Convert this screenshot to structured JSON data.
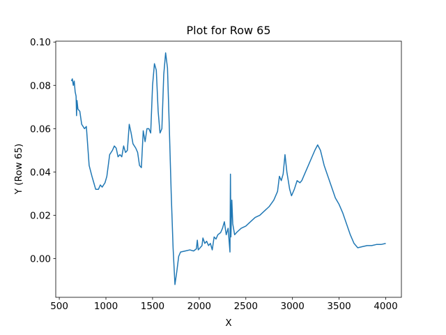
{
  "chart_data": {
    "type": "line",
    "title": "Plot for Row 65",
    "x_label": "X",
    "y_label": "Y (Row 65)",
    "x": [
      630,
      640,
      650,
      660,
      670,
      680,
      685,
      690,
      700,
      720,
      740,
      770,
      790,
      800,
      820,
      850,
      870,
      890,
      920,
      940,
      960,
      990,
      1010,
      1040,
      1070,
      1090,
      1110,
      1130,
      1150,
      1170,
      1190,
      1210,
      1230,
      1250,
      1270,
      1290,
      1320,
      1340,
      1360,
      1380,
      1400,
      1420,
      1440,
      1460,
      1480,
      1500,
      1520,
      1540,
      1560,
      1580,
      1600,
      1620,
      1640,
      1660,
      1680,
      1700,
      1720,
      1740,
      1760,
      1780,
      1800,
      1850,
      1900,
      1940,
      1970,
      1980,
      1990,
      2030,
      2040,
      2060,
      2080,
      2100,
      2120,
      2140,
      2160,
      2180,
      2200,
      2230,
      2250,
      2270,
      2290,
      2310,
      2330,
      2335,
      2340,
      2350,
      2360,
      2380,
      2400,
      2450,
      2500,
      2550,
      2600,
      2650,
      2700,
      2750,
      2800,
      2840,
      2860,
      2880,
      2900,
      2920,
      2940,
      2970,
      2990,
      3020,
      3050,
      3080,
      3100,
      3130,
      3160,
      3200,
      3240,
      3270,
      3300,
      3340,
      3380,
      3420,
      3460,
      3500,
      3540,
      3580,
      3620,
      3660,
      3700,
      3750,
      3800,
      3850,
      3900,
      3950,
      4000
    ],
    "series": [
      {
        "name": "Row 65",
        "color": "#1f77b4",
        "values": [
          0.082,
          0.083,
          0.08,
          0.082,
          0.077,
          0.075,
          0.066,
          0.073,
          0.069,
          0.068,
          0.062,
          0.06,
          0.061,
          0.055,
          0.043,
          0.038,
          0.035,
          0.032,
          0.032,
          0.034,
          0.033,
          0.035,
          0.038,
          0.048,
          0.05,
          0.052,
          0.051,
          0.047,
          0.048,
          0.047,
          0.052,
          0.049,
          0.05,
          0.062,
          0.058,
          0.053,
          0.051,
          0.049,
          0.043,
          0.042,
          0.059,
          0.054,
          0.06,
          0.06,
          0.058,
          0.08,
          0.09,
          0.087,
          0.068,
          0.058,
          0.06,
          0.085,
          0.095,
          0.088,
          0.06,
          0.03,
          0.005,
          -0.012,
          -0.006,
          0.001,
          0.003,
          0.0035,
          0.004,
          0.0035,
          0.0045,
          0.0085,
          0.004,
          0.006,
          0.0095,
          0.007,
          0.008,
          0.006,
          0.007,
          0.004,
          0.01,
          0.009,
          0.011,
          0.012,
          0.014,
          0.017,
          0.011,
          0.014,
          0.003,
          0.039,
          0.01,
          0.027,
          0.016,
          0.011,
          0.012,
          0.014,
          0.015,
          0.017,
          0.019,
          0.02,
          0.022,
          0.024,
          0.027,
          0.031,
          0.038,
          0.036,
          0.039,
          0.048,
          0.04,
          0.032,
          0.029,
          0.032,
          0.036,
          0.035,
          0.036,
          0.039,
          0.042,
          0.046,
          0.05,
          0.0525,
          0.05,
          0.043,
          0.038,
          0.033,
          0.028,
          0.025,
          0.021,
          0.016,
          0.011,
          0.007,
          0.005,
          0.0055,
          0.006,
          0.006,
          0.0065,
          0.0065,
          0.007
        ]
      }
    ],
    "xlim": [
      462,
      4168
    ],
    "ylim": [
      -0.0179,
      0.1004
    ],
    "xticks": [
      500,
      1000,
      1500,
      2000,
      2500,
      3000,
      3500,
      4000
    ],
    "yticks": [
      {
        "value": 0,
        "label": "0.00"
      },
      {
        "value": 0.02,
        "label": "0.02"
      },
      {
        "value": 0.04,
        "label": "0.04"
      },
      {
        "value": 0.06,
        "label": "0.06"
      },
      {
        "value": 0.08,
        "label": "0.08"
      },
      {
        "value": 0.1,
        "label": "0.10"
      }
    ],
    "grid": false
  }
}
